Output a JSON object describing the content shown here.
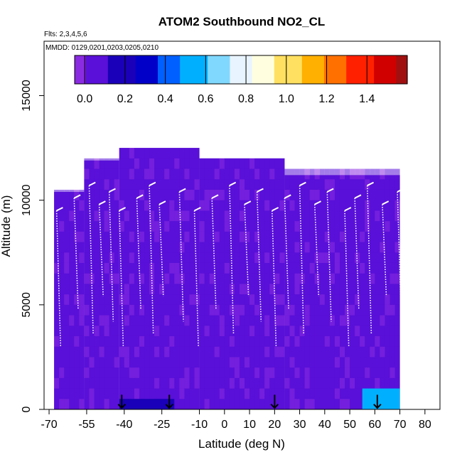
{
  "chart_data": {
    "type": "heatmap",
    "title": "ATOM2 Southbound NO2_CL",
    "flights_note": "Flts: 2,3,4,5,6",
    "dates_note": "MMDD: 0129,0201,0203,0205,0210",
    "xlabel": "Latitude (deg N)",
    "ylabel": "Altitude (m)",
    "xlim": [
      -72,
      86
    ],
    "ylim": [
      0,
      17600
    ],
    "x_ticks": [
      -70,
      -55,
      -40,
      -25,
      -10,
      0,
      10,
      20,
      30,
      40,
      50,
      60,
      70,
      80
    ],
    "x_tick_labels": [
      "-70",
      "-55",
      "-40",
      "-25",
      "-10",
      "0",
      "10",
      "20",
      "30",
      "40",
      "50",
      "60",
      "70",
      "80"
    ],
    "y_ticks": [
      0,
      5000,
      10000,
      15000
    ],
    "y_tick_labels": [
      "0",
      "5000",
      "10000",
      "15000"
    ],
    "colorbar": {
      "range": [
        -0.05,
        1.6
      ],
      "ticks": [
        0.0,
        0.2,
        0.4,
        0.6,
        0.8,
        1.0,
        1.2,
        1.4
      ],
      "tick_labels": [
        "0.0",
        "0.2",
        "0.4",
        "0.6",
        "0.8",
        "1.0",
        "1.2",
        "1.4"
      ],
      "colors": [
        "#8a2be2",
        "#5a10d8",
        "#1a00b8",
        "#0000c8",
        "#0060ff",
        "#00b0ff",
        "#80d8ff",
        "#e8f4ff",
        "#ffffe0",
        "#ffe060",
        "#ffb000",
        "#ff7000",
        "#ff2000",
        "#d00000",
        "#a01010"
      ]
    },
    "background_value": 0.05,
    "curtain_segments": [
      {
        "lat": [
          -68,
          -56
        ],
        "top": 10400
      },
      {
        "lat": [
          -56,
          -42
        ],
        "top": 11900
      },
      {
        "lat": [
          -42,
          -10
        ],
        "top": 12500
      },
      {
        "lat": [
          -10,
          24
        ],
        "top": 12000
      },
      {
        "lat": [
          24,
          70
        ],
        "top": 11200
      }
    ],
    "surface_highlights": [
      {
        "lat": [
          55,
          70
        ],
        "alt": [
          0,
          1000
        ],
        "value": 0.55
      },
      {
        "lat": [
          -42,
          -20
        ],
        "alt": [
          0,
          500
        ],
        "value": 0.18
      }
    ],
    "profiles": [
      -67,
      -60,
      -54,
      -50,
      -46,
      -42,
      -35,
      -30,
      -26,
      -18,
      -12,
      -5,
      2,
      8,
      13,
      19,
      24,
      30,
      36,
      41,
      48,
      52,
      57,
      63,
      69
    ],
    "arrows_lat": [
      -41,
      -22,
      20,
      61
    ]
  }
}
